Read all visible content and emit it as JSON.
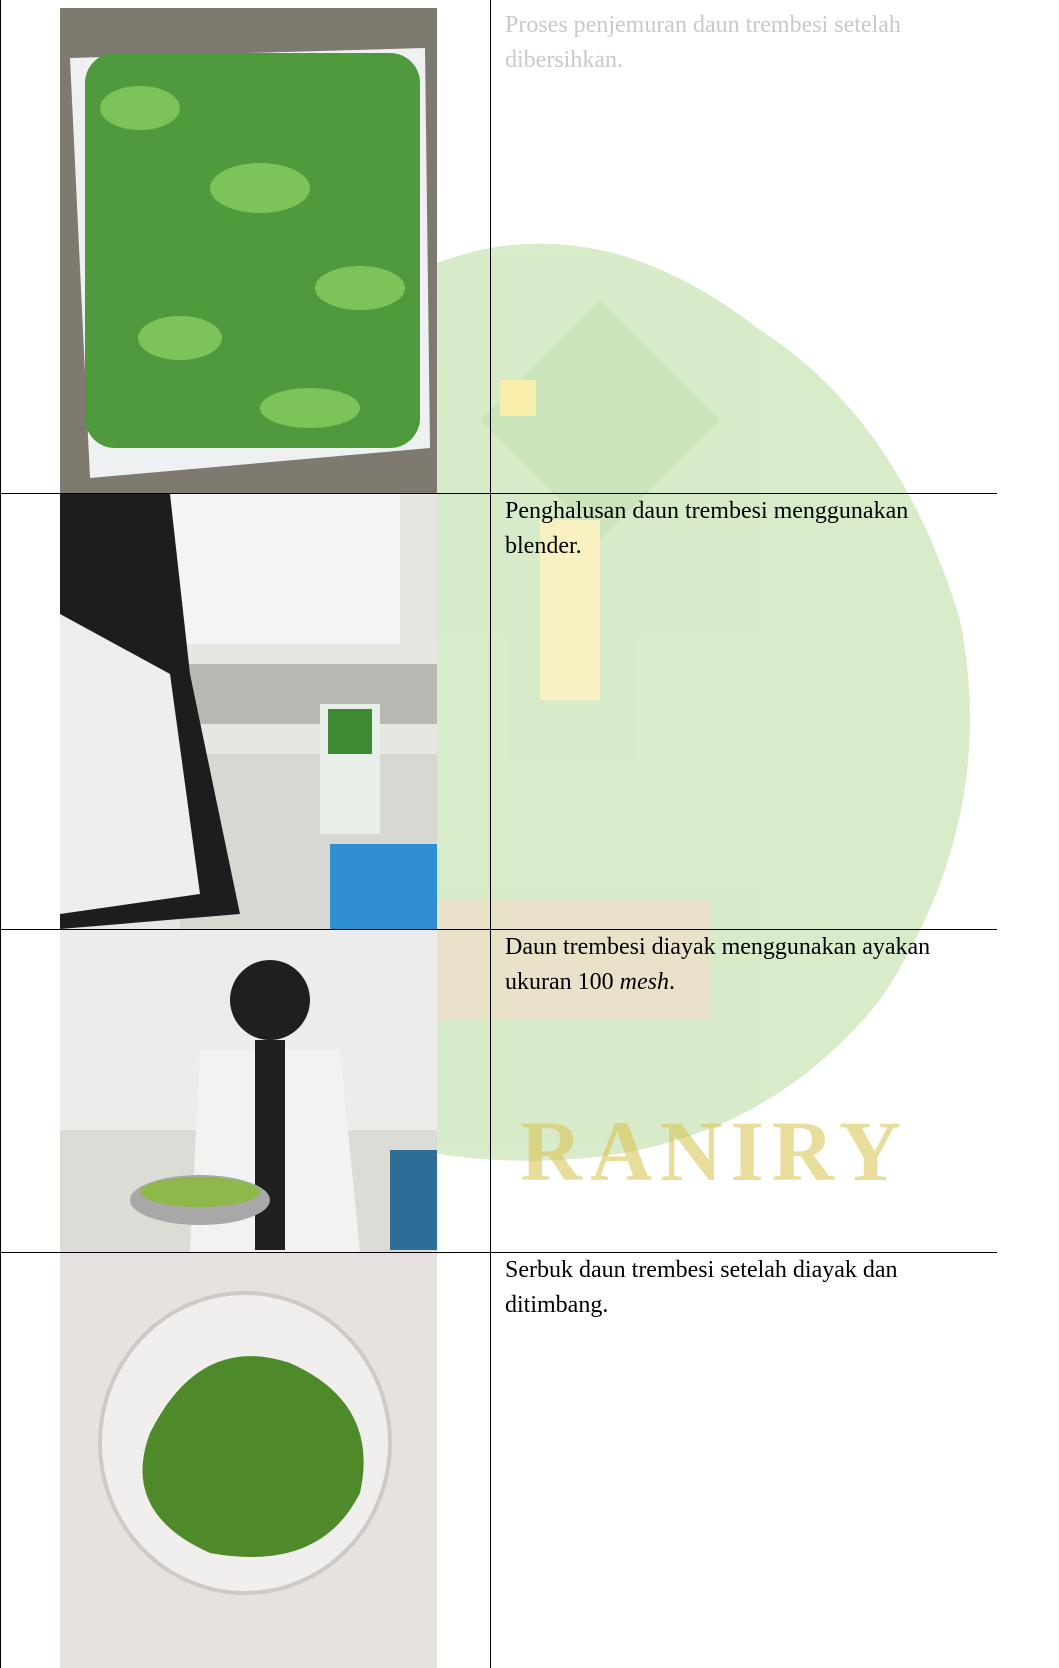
{
  "table": {
    "rows": [
      {
        "caption": [
          {
            "text": "Proses penjemuran daun trembesi setelah dibersihkan."
          }
        ]
      },
      {
        "caption": [
          {
            "text": "Penghalusan daun trembesi menggunakan blender."
          }
        ]
      },
      {
        "caption": [
          {
            "text": "Daun trembesi diayak menggunakan ayakan ukuran 100 "
          },
          {
            "text": "mesh",
            "italic": true
          },
          {
            "text": "."
          }
        ]
      },
      {
        "caption": [
          {
            "text": "Serbuk daun trembesi setelah diayak dan ditimbang."
          }
        ]
      }
    ]
  },
  "watermark": {
    "text": "RANIRY"
  }
}
